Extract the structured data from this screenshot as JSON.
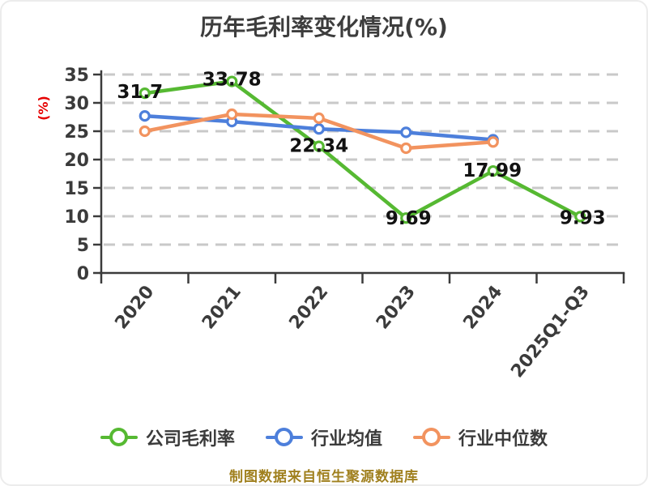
{
  "title": "历年毛利率变化情况(%)",
  "footer": "制图数据来自恒生聚源数据库",
  "colors": {
    "title_text": "#3d3d3d",
    "axis_text": "#3b3b3b",
    "gridline": "#c9c9c9",
    "y_axis_label": "#e60000",
    "footer_text": "#a0801e",
    "point_label": "#121212"
  },
  "chart_data": {
    "type": "line",
    "title": "历年毛利率变化情况(%)",
    "xlabel": "",
    "ylabel": "(%)",
    "ylim": [
      0,
      35
    ],
    "ytick_step": 5,
    "ytick_labels": [
      "0",
      "5",
      "10",
      "15",
      "20",
      "25",
      "30",
      "35"
    ],
    "grid": "horizontal dashed",
    "legend_position": "bottom",
    "categories": [
      "2020",
      "2021",
      "2022",
      "2023",
      "2024",
      "2025Q1-Q3"
    ],
    "series": [
      {
        "name": "公司毛利率",
        "color": "#56b932",
        "values": [
          31.7,
          33.78,
          22.34,
          9.69,
          17.99,
          9.93
        ],
        "point_labels": [
          "31.7",
          "33.78",
          "22.34",
          "9.69",
          "17.99",
          "9.93"
        ],
        "label_offsets": [
          [
            -6,
            6
          ],
          [
            0,
            5
          ],
          [
            0,
            7
          ],
          [
            3,
            8
          ],
          [
            -1,
            7
          ],
          [
            3,
            9
          ]
        ]
      },
      {
        "name": "行业均值",
        "color": "#4d7fdb",
        "values": [
          27.7,
          26.7,
          25.4,
          24.8,
          23.5,
          null
        ],
        "point_labels": null,
        "label_offsets": null
      },
      {
        "name": "行业中位数",
        "color": "#f2935f",
        "values": [
          25.0,
          28.0,
          27.3,
          22.0,
          23.1,
          null
        ],
        "point_labels": null,
        "label_offsets": null
      }
    ]
  }
}
